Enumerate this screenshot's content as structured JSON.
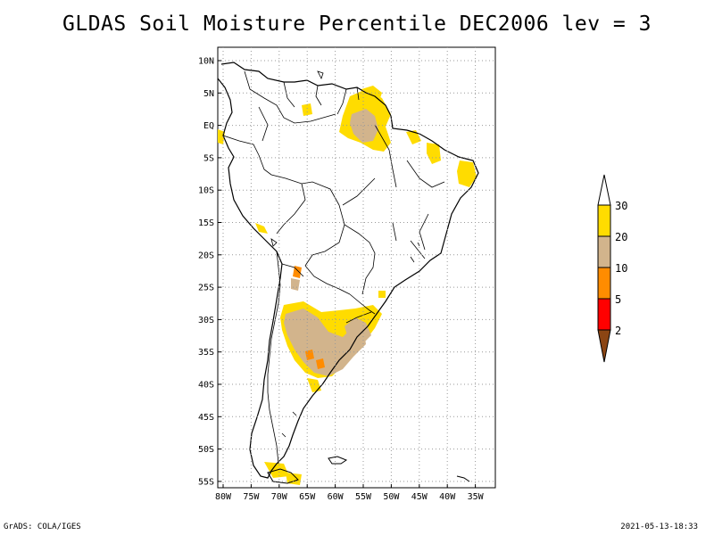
{
  "title": "GLDAS Soil Moisture Percentile DEC2006 lev = 3",
  "map": {
    "region": "South America",
    "lon_range": [
      -81,
      -32
    ],
    "lat_range": [
      -56,
      12
    ],
    "lat_labels": [
      "10N",
      "5N",
      "EQ",
      "5S",
      "10S",
      "15S",
      "20S",
      "25S",
      "30S",
      "35S",
      "40S",
      "45S",
      "50S",
      "55S"
    ],
    "lon_labels": [
      "80W",
      "75W",
      "70W",
      "65W",
      "60W",
      "55W",
      "50W",
      "45W",
      "40W",
      "35W"
    ],
    "grid": "dotted"
  },
  "legend": {
    "labels": [
      "30",
      "20",
      "10",
      "5",
      "2"
    ],
    "colors": {
      "c30": "#ffdc00",
      "c20": "#d2b48c",
      "c10": "#ff8c00",
      "c5": "#ff0000",
      "c2": "#8b4513"
    }
  },
  "footer": {
    "left": "GrADS: COLA/IGES",
    "right": "2021-05-13-18:33"
  }
}
